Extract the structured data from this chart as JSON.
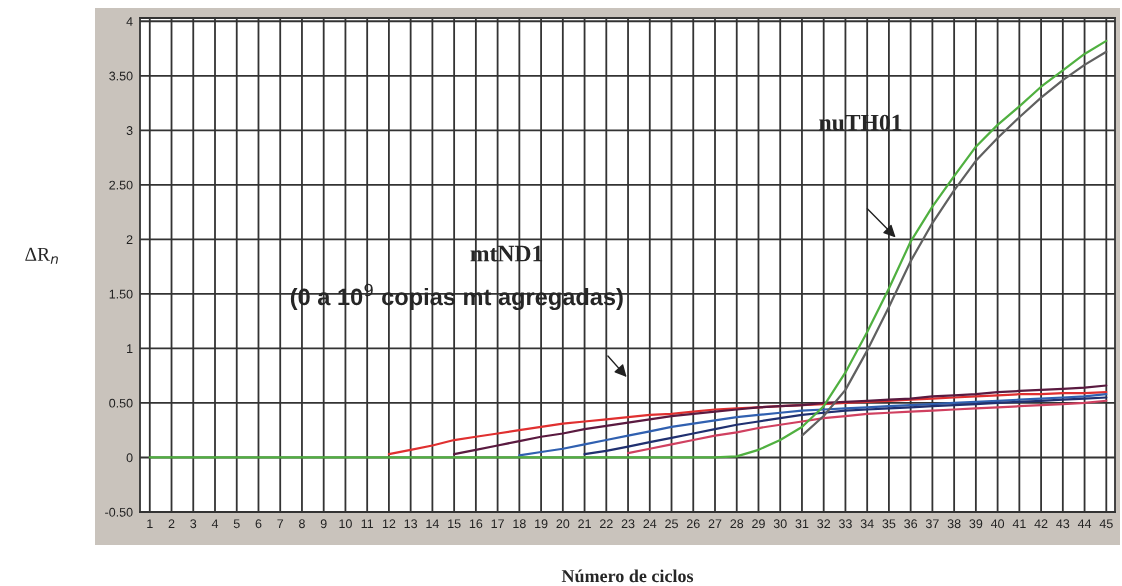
{
  "chart_data": {
    "type": "line",
    "xlabel": "Número de ciclos",
    "ylabel": "ΔR$_{n}$",
    "x": [
      1,
      2,
      3,
      4,
      5,
      6,
      7,
      8,
      9,
      10,
      11,
      12,
      13,
      14,
      15,
      16,
      17,
      18,
      19,
      20,
      21,
      22,
      23,
      24,
      25,
      26,
      27,
      28,
      29,
      30,
      31,
      32,
      33,
      34,
      35,
      36,
      37,
      38,
      39,
      40,
      41,
      42,
      43,
      44,
      45
    ],
    "series": [
      {
        "color": "#e03030",
        "values": [
          null,
          null,
          null,
          null,
          null,
          null,
          null,
          null,
          null,
          null,
          null,
          0.03,
          0.07,
          0.11,
          0.16,
          0.19,
          0.22,
          0.25,
          0.28,
          0.31,
          0.33,
          0.35,
          0.37,
          0.39,
          0.4,
          0.42,
          0.44,
          0.45,
          0.46,
          0.47,
          0.48,
          0.49,
          0.5,
          0.51,
          0.52,
          0.53,
          0.54,
          0.55,
          0.56,
          0.57,
          0.58,
          0.58,
          0.59,
          0.59,
          0.6
        ]
      },
      {
        "color": "#5a1a40",
        "values": [
          null,
          null,
          null,
          null,
          null,
          null,
          null,
          null,
          null,
          null,
          null,
          null,
          null,
          null,
          0.03,
          0.07,
          0.11,
          0.15,
          0.19,
          0.22,
          0.26,
          0.29,
          0.32,
          0.35,
          0.38,
          0.4,
          0.42,
          0.44,
          0.46,
          0.47,
          0.48,
          0.5,
          0.51,
          0.52,
          0.53,
          0.54,
          0.56,
          0.57,
          0.58,
          0.6,
          0.61,
          0.62,
          0.63,
          0.64,
          0.66
        ]
      },
      {
        "color": "#3060b0",
        "values": [
          null,
          null,
          null,
          null,
          null,
          null,
          null,
          null,
          null,
          null,
          null,
          null,
          null,
          null,
          null,
          null,
          null,
          0.02,
          0.05,
          0.08,
          0.12,
          0.16,
          0.2,
          0.24,
          0.28,
          0.31,
          0.34,
          0.37,
          0.39,
          0.41,
          0.43,
          0.44,
          0.45,
          0.46,
          0.47,
          0.48,
          0.49,
          0.5,
          0.51,
          0.52,
          0.53,
          0.54,
          0.55,
          0.56,
          0.58
        ]
      },
      {
        "color": "#203070",
        "values": [
          null,
          null,
          null,
          null,
          null,
          null,
          null,
          null,
          null,
          null,
          null,
          null,
          null,
          null,
          null,
          null,
          null,
          null,
          null,
          null,
          0.03,
          0.06,
          0.1,
          0.14,
          0.18,
          0.22,
          0.26,
          0.3,
          0.33,
          0.36,
          0.39,
          0.41,
          0.43,
          0.44,
          0.45,
          0.46,
          0.47,
          0.48,
          0.49,
          0.5,
          0.51,
          0.52,
          0.53,
          0.54,
          0.55
        ]
      },
      {
        "color": "#d04060",
        "values": [
          null,
          null,
          null,
          null,
          null,
          null,
          null,
          null,
          null,
          null,
          null,
          null,
          null,
          null,
          null,
          null,
          null,
          null,
          null,
          null,
          null,
          null,
          0.04,
          0.08,
          0.12,
          0.16,
          0.2,
          0.23,
          0.27,
          0.3,
          0.33,
          0.36,
          0.38,
          0.4,
          0.41,
          0.42,
          0.43,
          0.44,
          0.45,
          0.46,
          0.47,
          0.48,
          0.49,
          0.5,
          0.52
        ]
      },
      {
        "color": "#50b040",
        "values": [
          0,
          0,
          0,
          0,
          0,
          0,
          0,
          0,
          0,
          0,
          0,
          0,
          0,
          0,
          0,
          0,
          0,
          0,
          0,
          0,
          0,
          0,
          0,
          0,
          0,
          0,
          0,
          0.01,
          0.07,
          0.16,
          0.28,
          0.47,
          0.78,
          1.15,
          1.55,
          1.98,
          2.3,
          2.58,
          2.85,
          3.05,
          3.22,
          3.4,
          3.55,
          3.7,
          3.82
        ]
      },
      {
        "color": "#606060",
        "values": [
          null,
          null,
          null,
          null,
          null,
          null,
          null,
          null,
          null,
          null,
          null,
          null,
          null,
          null,
          null,
          null,
          null,
          null,
          null,
          null,
          null,
          null,
          null,
          null,
          null,
          null,
          null,
          null,
          null,
          null,
          0.2,
          0.38,
          0.62,
          0.98,
          1.38,
          1.8,
          2.15,
          2.45,
          2.72,
          2.93,
          3.12,
          3.3,
          3.46,
          3.6,
          3.72
        ]
      }
    ],
    "xlim": [
      0.55,
      45.4
    ],
    "ylim": [
      -0.5,
      4.03
    ],
    "xticks": [
      1,
      2,
      3,
      4,
      5,
      6,
      7,
      8,
      9,
      10,
      11,
      12,
      13,
      14,
      15,
      16,
      17,
      18,
      19,
      20,
      21,
      22,
      23,
      24,
      25,
      26,
      27,
      28,
      29,
      30,
      31,
      32,
      33,
      34,
      35,
      36,
      37,
      38,
      39,
      40,
      41,
      42,
      43,
      44,
      45
    ],
    "yticks": [
      {
        "value": -0.5,
        "label": "-0.50"
      },
      0,
      {
        "value": 0.5,
        "label": "0.50"
      },
      1,
      {
        "value": 1.5,
        "label": "1.50"
      },
      2,
      {
        "value": 2.5,
        "label": "2.50"
      },
      3,
      {
        "value": 3.5,
        "label": "3.50"
      },
      4
    ],
    "grid": true,
    "annotations": [
      "nuTH01",
      "mtND1",
      "(0 a 10$^{9}$ copias mt agregadas)"
    ]
  }
}
